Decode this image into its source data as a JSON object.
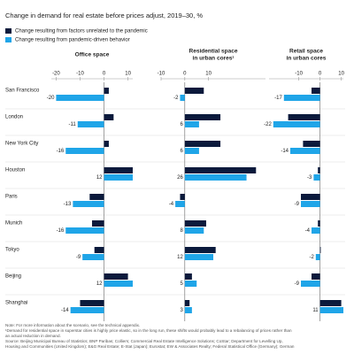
{
  "chart_data": {
    "type": "bar",
    "title": "Change in demand for real estate before prices adjust, 2019–30, %",
    "categories": [
      "San Francisco",
      "London",
      "New York City",
      "Houston",
      "Paris",
      "Munich",
      "Tokyo",
      "Beijing",
      "Shanghai"
    ],
    "series": [
      {
        "name": "Change resulting from factors unrelated to the pandemic",
        "color": "#0b1a3c"
      },
      {
        "name": "Change resulting from pandemic-driven behavior",
        "color": "#1fa5e8"
      }
    ],
    "panels": [
      {
        "title": [
          "Office space"
        ],
        "xlim": [
          -22,
          12
        ],
        "xticks": [
          -20,
          -10,
          0,
          10
        ],
        "values": [
          [
            2,
            4,
            2,
            12,
            -6,
            -5,
            -4,
            10,
            -10
          ],
          [
            -20,
            -11,
            -16,
            12,
            -13,
            -16,
            -9,
            12,
            -14
          ]
        ]
      },
      {
        "title": [
          "Residential space",
          "in urban cores¹"
        ],
        "xlim": [
          -10,
          34
        ],
        "xticks": [
          -10,
          0,
          10
        ],
        "values": [
          [
            8,
            15,
            15,
            30,
            -2,
            9,
            13,
            3,
            2
          ],
          [
            -2,
            6,
            6,
            26,
            -4,
            8,
            12,
            5,
            3
          ]
        ]
      },
      {
        "title": [
          "Retail space",
          "in urban cores"
        ],
        "xlim": [
          -24,
          11
        ],
        "xticks": [
          -10,
          0,
          10
        ],
        "values": [
          [
            -4,
            -15,
            -8,
            -1,
            -9,
            -1,
            0,
            -4,
            10
          ],
          [
            -17,
            -22,
            -14,
            -3,
            -9,
            -4,
            -2,
            -9,
            11
          ]
        ]
      }
    ],
    "notes": [
      "Note: For more information about the scenario, see the technical appendix.",
      "¹Demand for residential space in superstar cities is highly price elastic, so in the long run, these shifts would probably lead to a rebalancing of prices rather than",
      "an actual reduction in demand.",
      "Source: Beijing Municipal Bureau of Statistics; BNP Paribas; Colliers; Commercial Real Estate Intelligence Solutions; CoStar; Department for Levelling Up,",
      "Housing and Communities (United Kingdom); E&G Real Estate; E-Stat (Japan); Eurostat; EW & Associates Realty; Federal Statistical Office (Germany); German"
    ]
  }
}
